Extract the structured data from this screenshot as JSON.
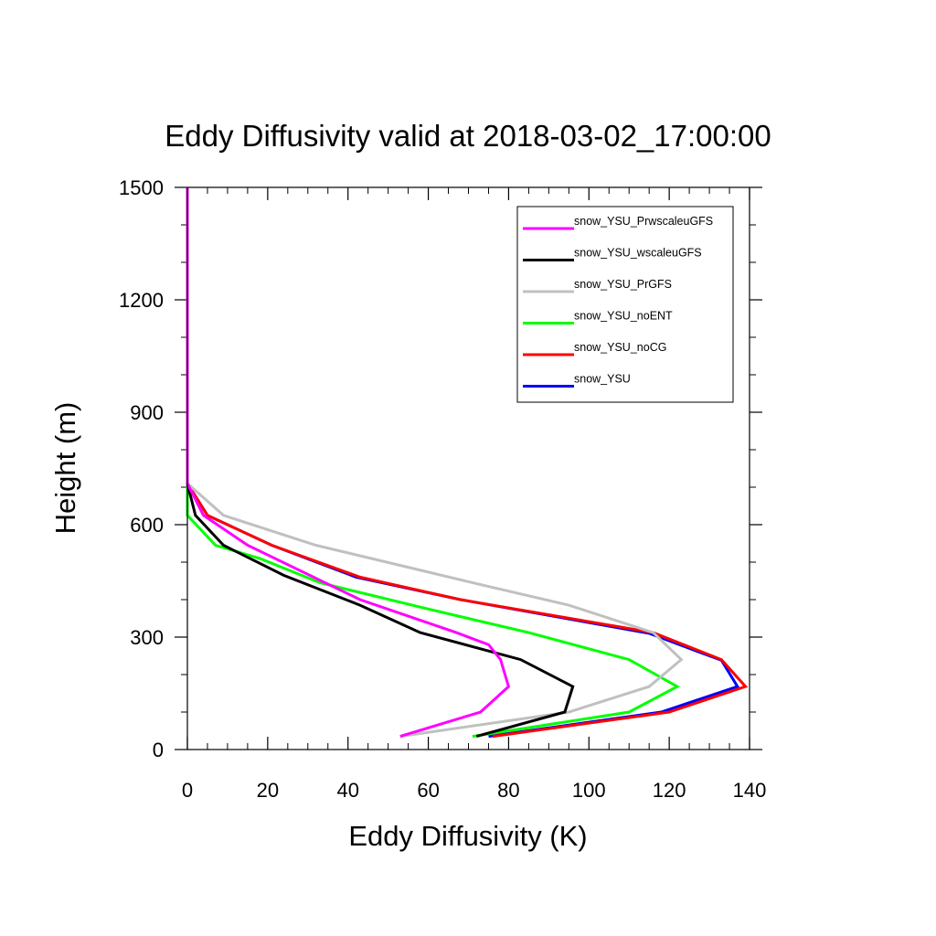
{
  "chart_data": {
    "type": "line",
    "title": "Eddy Diffusivity valid at 2018-03-02_17:00:00",
    "xlabel": "Eddy Diffusivity (K)",
    "ylabel": "Height (m)",
    "xlim": [
      0,
      140
    ],
    "ylim": [
      0,
      1500
    ],
    "xticks": [
      0,
      20,
      40,
      60,
      80,
      100,
      120,
      140
    ],
    "yticks": [
      0,
      300,
      600,
      900,
      1200,
      1500
    ],
    "grid": false,
    "legend_position": "top-right",
    "series": [
      {
        "name": "snow_YSU",
        "color": "#0000ff",
        "x": [
          75,
          118,
          137,
          133,
          115,
          68,
          42,
          21,
          5,
          0,
          0,
          0
        ],
        "y": [
          35,
          100,
          168,
          238,
          310,
          400,
          460,
          545,
          625,
          710,
          800,
          1500
        ]
      },
      {
        "name": "snow_YSU_noCG",
        "color": "#ff0000",
        "x": [
          76,
          120,
          139,
          133,
          116,
          68,
          43,
          21,
          5,
          0,
          0,
          0
        ],
        "y": [
          35,
          100,
          168,
          240,
          312,
          400,
          460,
          545,
          625,
          710,
          800,
          1500
        ]
      },
      {
        "name": "snow_YSU_noENT",
        "color": "#00ff00",
        "x": [
          71,
          110,
          122,
          110,
          85,
          58,
          33,
          18,
          7,
          0,
          0,
          0
        ],
        "y": [
          35,
          100,
          168,
          240,
          312,
          380,
          445,
          510,
          545,
          625,
          710,
          1500
        ]
      },
      {
        "name": "snow_YSU_PrGFS",
        "color": "#c0c0c0",
        "x": [
          53,
          95,
          115,
          123,
          116,
          95,
          73,
          32,
          9,
          0,
          0,
          0
        ],
        "y": [
          35,
          100,
          168,
          240,
          312,
          385,
          440,
          545,
          625,
          710,
          800,
          1500
        ]
      },
      {
        "name": "snow_YSU_wscaleuGFS",
        "color": "#000000",
        "x": [
          72,
          94,
          96,
          83,
          58,
          43,
          24,
          9,
          2,
          0,
          0,
          0
        ],
        "y": [
          35,
          100,
          168,
          240,
          312,
          385,
          465,
          545,
          625,
          710,
          800,
          1500
        ]
      },
      {
        "name": "snow_YSU_PrwscaleuGFS",
        "color": "#ff00ff",
        "x": [
          53,
          73,
          80,
          78,
          75,
          67,
          43,
          15,
          4,
          0,
          0,
          0
        ],
        "y": [
          35,
          100,
          168,
          240,
          280,
          312,
          400,
          545,
          625,
          710,
          800,
          1500
        ]
      }
    ]
  },
  "legend": {
    "entries": [
      {
        "label": "snow_YSU_PrwscaleuGFS",
        "color": "#ff00ff"
      },
      {
        "label": "snow_YSU_wscaleuGFS",
        "color": "#000000"
      },
      {
        "label": "snow_YSU_PrGFS",
        "color": "#c0c0c0"
      },
      {
        "label": "snow_YSU_noENT",
        "color": "#00ff00"
      },
      {
        "label": "snow_YSU_noCG",
        "color": "#ff0000"
      },
      {
        "label": "snow_YSU",
        "color": "#0000ff"
      }
    ]
  }
}
